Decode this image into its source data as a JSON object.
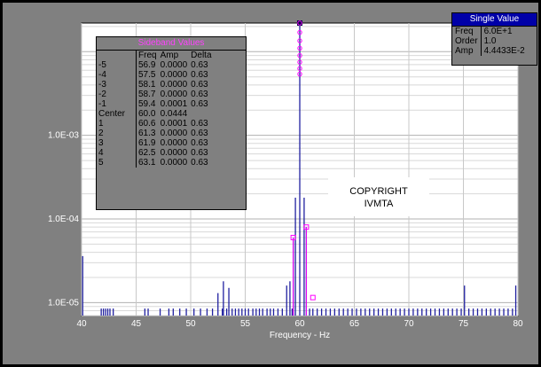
{
  "chart_data": {
    "type": "line",
    "title": "",
    "xlabel": "Frequency - Hz",
    "ylabel": "",
    "xlim": [
      40,
      80
    ],
    "ylim": [
      7e-06,
      0.022
    ],
    "y_scale": "log",
    "x_ticks": [
      "40",
      "45",
      "50",
      "55",
      "60",
      "65",
      "70",
      "75",
      "80"
    ],
    "y_ticks": [
      "1.0E-03",
      "1.0E-04",
      "1.0E-05"
    ],
    "y_tick_values": [
      0.001,
      0.0001,
      1e-05
    ],
    "grid": true,
    "background_color": "#808080",
    "plot_color": "#ffffff",
    "line_color": "#2020a0",
    "marker_color": "#ff00ff",
    "peak": {
      "x": 60.0,
      "y": 0.0444
    },
    "spectrum_lines": [
      {
        "x": 40.1,
        "y": 3.6e-05
      },
      {
        "x": 41.8,
        "y": 8.5e-06
      },
      {
        "x": 42.0,
        "y": 8.5e-06
      },
      {
        "x": 42.2,
        "y": 8.5e-06
      },
      {
        "x": 42.4,
        "y": 8.5e-06
      },
      {
        "x": 42.6,
        "y": 8.5e-06
      },
      {
        "x": 42.9,
        "y": 8.5e-06
      },
      {
        "x": 45.8,
        "y": 8.5e-06
      },
      {
        "x": 46.1,
        "y": 8.5e-06
      },
      {
        "x": 47.2,
        "y": 8.5e-06
      },
      {
        "x": 48.0,
        "y": 8.5e-06
      },
      {
        "x": 48.4,
        "y": 8.5e-06
      },
      {
        "x": 49.0,
        "y": 8.5e-06
      },
      {
        "x": 49.6,
        "y": 8.5e-06
      },
      {
        "x": 50.3,
        "y": 8.5e-06
      },
      {
        "x": 50.9,
        "y": 8.5e-06
      },
      {
        "x": 51.5,
        "y": 8.5e-06
      },
      {
        "x": 52.0,
        "y": 8.5e-06
      },
      {
        "x": 52.5,
        "y": 1.3e-05
      },
      {
        "x": 52.9,
        "y": 8.5e-06
      },
      {
        "x": 53.0,
        "y": 1.8e-05
      },
      {
        "x": 53.3,
        "y": 8.5e-06
      },
      {
        "x": 53.5,
        "y": 1.5e-05
      },
      {
        "x": 53.8,
        "y": 8.5e-06
      },
      {
        "x": 54.1,
        "y": 8.5e-06
      },
      {
        "x": 54.4,
        "y": 8.5e-06
      },
      {
        "x": 54.7,
        "y": 8.5e-06
      },
      {
        "x": 55.0,
        "y": 8.5e-06
      },
      {
        "x": 55.3,
        "y": 8.5e-06
      },
      {
        "x": 55.7,
        "y": 8.5e-06
      },
      {
        "x": 56.0,
        "y": 8.5e-06
      },
      {
        "x": 56.3,
        "y": 8.5e-06
      },
      {
        "x": 56.6,
        "y": 8.5e-06
      },
      {
        "x": 57.0,
        "y": 8.5e-06
      },
      {
        "x": 57.3,
        "y": 8.5e-06
      },
      {
        "x": 57.6,
        "y": 8.5e-06
      },
      {
        "x": 58.0,
        "y": 8.5e-06
      },
      {
        "x": 58.4,
        "y": 8.5e-06
      },
      {
        "x": 58.8,
        "y": 1.6e-05
      },
      {
        "x": 59.1,
        "y": 1.8e-05
      },
      {
        "x": 59.3,
        "y": 8.5e-06
      },
      {
        "x": 59.4,
        "y": 6e-05
      },
      {
        "x": 59.6,
        "y": 0.00018
      },
      {
        "x": 60.0,
        "y": 0.0444
      },
      {
        "x": 60.4,
        "y": 0.00018
      },
      {
        "x": 60.6,
        "y": 8e-05
      },
      {
        "x": 60.9,
        "y": 8.5e-06
      },
      {
        "x": 61.2,
        "y": 8.5e-06
      },
      {
        "x": 61.6,
        "y": 8.5e-06
      },
      {
        "x": 62.0,
        "y": 8.5e-06
      },
      {
        "x": 62.4,
        "y": 8.5e-06
      },
      {
        "x": 62.8,
        "y": 8.5e-06
      },
      {
        "x": 63.2,
        "y": 8.5e-06
      },
      {
        "x": 63.6,
        "y": 8.5e-06
      },
      {
        "x": 64.0,
        "y": 8.5e-06
      },
      {
        "x": 64.4,
        "y": 8.5e-06
      },
      {
        "x": 64.8,
        "y": 8.5e-06
      },
      {
        "x": 65.2,
        "y": 8.5e-06
      },
      {
        "x": 65.6,
        "y": 8.5e-06
      },
      {
        "x": 66.0,
        "y": 8.5e-06
      },
      {
        "x": 66.4,
        "y": 8.5e-06
      },
      {
        "x": 66.8,
        "y": 8.5e-06
      },
      {
        "x": 67.2,
        "y": 8.5e-06
      },
      {
        "x": 67.6,
        "y": 8.5e-06
      },
      {
        "x": 68.0,
        "y": 8.5e-06
      },
      {
        "x": 68.4,
        "y": 8.5e-06
      },
      {
        "x": 68.8,
        "y": 8.5e-06
      },
      {
        "x": 69.2,
        "y": 8.5e-06
      },
      {
        "x": 69.6,
        "y": 8.5e-06
      },
      {
        "x": 70.0,
        "y": 8.5e-06
      },
      {
        "x": 70.4,
        "y": 8.5e-06
      },
      {
        "x": 70.8,
        "y": 8.5e-06
      },
      {
        "x": 71.2,
        "y": 8.5e-06
      },
      {
        "x": 71.6,
        "y": 8.5e-06
      },
      {
        "x": 72.0,
        "y": 8.5e-06
      },
      {
        "x": 72.4,
        "y": 8.5e-06
      },
      {
        "x": 72.8,
        "y": 8.5e-06
      },
      {
        "x": 73.2,
        "y": 8.5e-06
      },
      {
        "x": 73.6,
        "y": 8.5e-06
      },
      {
        "x": 74.0,
        "y": 8.5e-06
      },
      {
        "x": 74.4,
        "y": 8.5e-06
      },
      {
        "x": 74.8,
        "y": 8.5e-06
      },
      {
        "x": 75.1,
        "y": 1.6e-05
      },
      {
        "x": 75.5,
        "y": 8.5e-06
      },
      {
        "x": 75.9,
        "y": 8.5e-06
      },
      {
        "x": 76.3,
        "y": 8.5e-06
      },
      {
        "x": 76.7,
        "y": 8.5e-06
      },
      {
        "x": 77.1,
        "y": 8.5e-06
      },
      {
        "x": 77.5,
        "y": 8.5e-06
      },
      {
        "x": 77.9,
        "y": 8.5e-06
      },
      {
        "x": 78.3,
        "y": 8.5e-06
      },
      {
        "x": 78.7,
        "y": 8.5e-06
      },
      {
        "x": 79.1,
        "y": 8.5e-06
      },
      {
        "x": 79.5,
        "y": 8.5e-06
      },
      {
        "x": 79.8,
        "y": 1.6e-05
      }
    ],
    "sideband_markers": [
      {
        "x": 59.4,
        "y": 6e-05
      },
      {
        "x": 60.6,
        "y": 8e-05
      },
      {
        "x": 61.2,
        "y": 1.15e-05
      }
    ],
    "peak_markers_y": [
      0.0444,
      0.03,
      0.022,
      0.017,
      0.0135,
      0.011,
      0.009,
      0.0075,
      0.0063,
      0.0054
    ]
  },
  "sideband_panel": {
    "title": "Sideband Values",
    "headers": [
      "",
      "Freq",
      "Amp",
      "Delta"
    ],
    "rows": [
      [
        "-5",
        "56.9",
        "0.0000",
        "0.63"
      ],
      [
        "-4",
        "57.5",
        "0.0000",
        "0.63"
      ],
      [
        "-3",
        "58.1",
        "0.0000",
        "0.63"
      ],
      [
        "-2",
        "58.7",
        "0.0000",
        "0.63"
      ],
      [
        "-1",
        "59.4",
        "0.0001",
        "0.63"
      ],
      [
        "Center",
        "60.0",
        "0.0444",
        ""
      ],
      [
        "1",
        "60.6",
        "0.0001",
        "0.63"
      ],
      [
        "2",
        "61.3",
        "0.0000",
        "0.63"
      ],
      [
        "3",
        "61.9",
        "0.0000",
        "0.63"
      ],
      [
        "4",
        "62.5",
        "0.0000",
        "0.63"
      ],
      [
        "5",
        "63.1",
        "0.0000",
        "0.63"
      ]
    ]
  },
  "single_value_panel": {
    "title": "Single Value",
    "rows": [
      [
        "Freq",
        "6.0E+1"
      ],
      [
        "Order",
        "1.0"
      ],
      [
        "Amp",
        "4.4433E-2"
      ]
    ]
  },
  "copyright": {
    "line1": "COPYRIGHT",
    "line2": "IVMTA"
  }
}
